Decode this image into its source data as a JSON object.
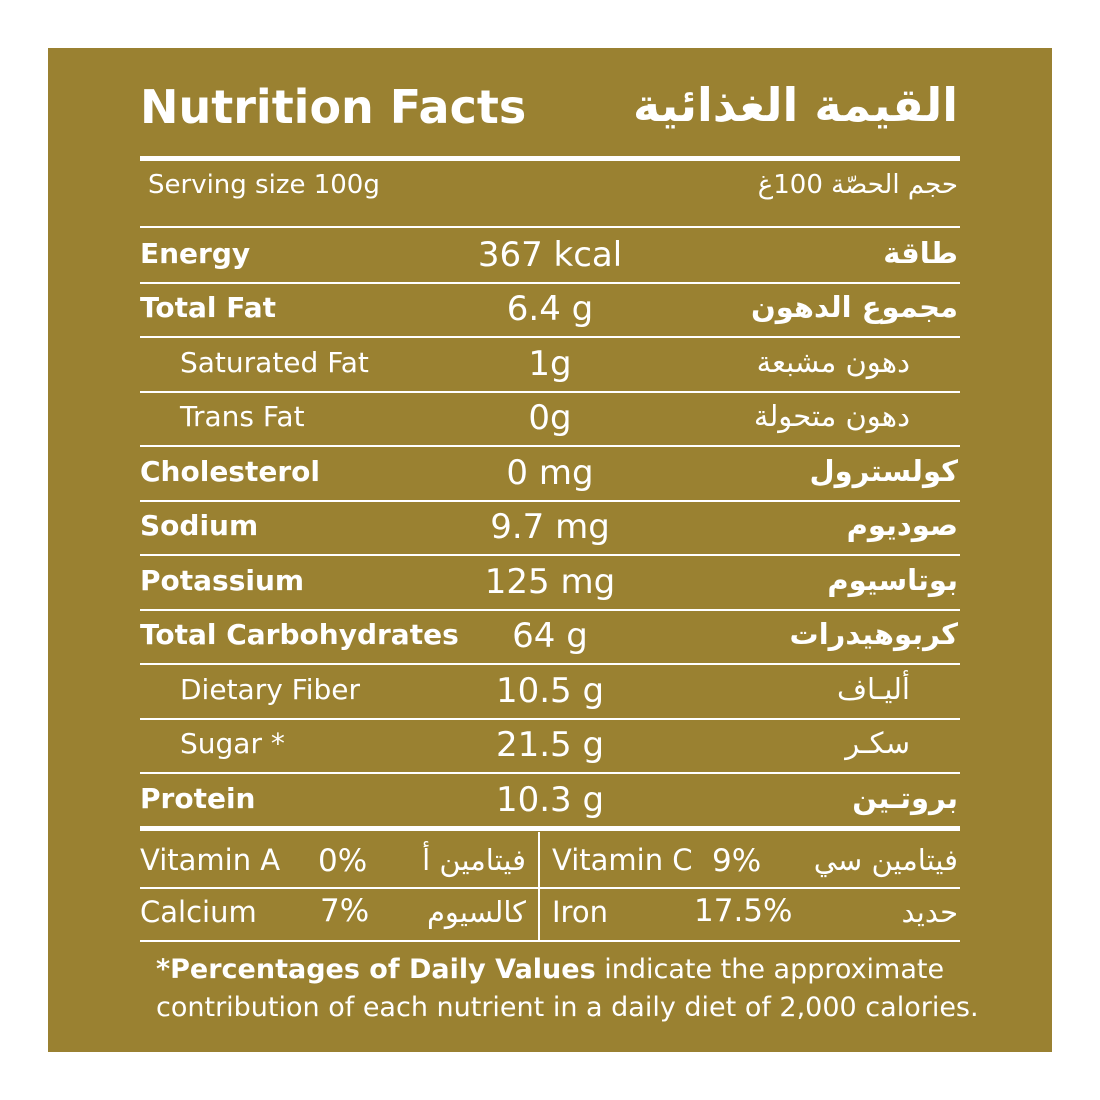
{
  "title": {
    "en": "Nutrition Facts",
    "ar": "القيمة الغذائية"
  },
  "serving": {
    "en": "Serving size 100g",
    "ar": "حجم الحصّة 100غ"
  },
  "rows": [
    {
      "en": "Energy",
      "value": "367 kcal",
      "ar": "طاقة"
    },
    {
      "en": "Total Fat",
      "value": "6.4 g",
      "ar": "مجموع الدهون"
    },
    {
      "en": "Saturated Fat",
      "value": "1g",
      "ar": "دهون مشبعة"
    },
    {
      "en": "Trans Fat",
      "value": "0g",
      "ar": "دهون متحولة"
    },
    {
      "en": "Cholesterol",
      "value": "0 mg",
      "ar": "كولسترول"
    },
    {
      "en": "Sodium",
      "value": "9.7 mg",
      "ar": "صوديوم"
    },
    {
      "en": "Potassium",
      "value": "125 mg",
      "ar": "بوتاسيوم"
    },
    {
      "en": "Total Carbohydrates",
      "value": "64 g",
      "ar": "كربوهيدرات"
    },
    {
      "en": "Dietary Fiber",
      "value": "10.5 g",
      "ar": "أليـاف"
    },
    {
      "en": "Sugar *",
      "value": "21.5 g",
      "ar": "سكـر"
    },
    {
      "en": "Protein",
      "value": "10.3 g",
      "ar": "بروتـين"
    }
  ],
  "vitamins": [
    {
      "en": "Vitamin A",
      "value": "0%",
      "ar": "فيتامين أ"
    },
    {
      "en": "Vitamin C",
      "value": "9%",
      "ar": "فيتامين سي"
    },
    {
      "en": "Calcium",
      "value": "7%",
      "ar": "كالسيوم"
    },
    {
      "en": "Iron",
      "value": "17.5%",
      "ar": "حديد"
    }
  ],
  "footnote": {
    "bold": "*Percentages of Daily Values",
    "line1_rest": " indicate the approximate",
    "line2": "contribution of each nutrient in a daily diet of 2,000 calories."
  },
  "colors": {
    "panel": "#9a8131",
    "text": "#ffffff"
  }
}
